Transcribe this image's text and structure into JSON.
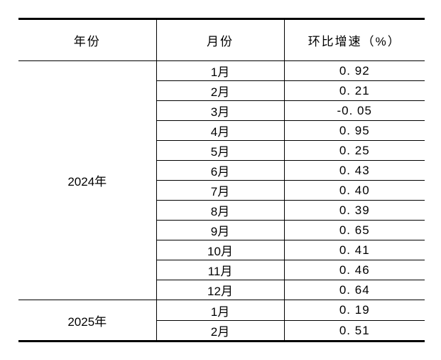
{
  "colors": {
    "background": "#ffffff",
    "border": "#000000",
    "text": "#000000"
  },
  "table": {
    "headers": {
      "year": "年份",
      "month": "月份",
      "rate": "环比增速（%）"
    },
    "groups": [
      {
        "year": "2024年",
        "rows": [
          {
            "month": "1月",
            "rate": "0. 92"
          },
          {
            "month": "2月",
            "rate": "0. 21"
          },
          {
            "month": "3月",
            "rate": "-0. 05"
          },
          {
            "month": "4月",
            "rate": "0. 95"
          },
          {
            "month": "5月",
            "rate": "0. 25"
          },
          {
            "month": "6月",
            "rate": "0. 43"
          },
          {
            "month": "7月",
            "rate": "0. 40"
          },
          {
            "month": "8月",
            "rate": "0. 39"
          },
          {
            "month": "9月",
            "rate": "0. 65"
          },
          {
            "month": "10月",
            "rate": "0. 41"
          },
          {
            "month": "11月",
            "rate": "0. 46"
          },
          {
            "month": "12月",
            "rate": "0. 64"
          }
        ]
      },
      {
        "year": "2025年",
        "rows": [
          {
            "month": "1月",
            "rate": "0. 19"
          },
          {
            "month": "2月",
            "rate": "0. 51"
          }
        ]
      }
    ]
  },
  "chart_data": {
    "type": "table",
    "columns": [
      "年份",
      "月份",
      "环比增速（%）"
    ],
    "rows": [
      [
        "2024年",
        "1月",
        0.92
      ],
      [
        "2024年",
        "2月",
        0.21
      ],
      [
        "2024年",
        "3月",
        -0.05
      ],
      [
        "2024年",
        "4月",
        0.95
      ],
      [
        "2024年",
        "5月",
        0.25
      ],
      [
        "2024年",
        "6月",
        0.43
      ],
      [
        "2024年",
        "7月",
        0.4
      ],
      [
        "2024年",
        "8月",
        0.39
      ],
      [
        "2024年",
        "9月",
        0.65
      ],
      [
        "2024年",
        "10月",
        0.41
      ],
      [
        "2024年",
        "11月",
        0.46
      ],
      [
        "2024年",
        "12月",
        0.64
      ],
      [
        "2025年",
        "1月",
        0.19
      ],
      [
        "2025年",
        "2月",
        0.51
      ]
    ],
    "notes": "Month-over-month growth rate (%) by year and month; merged year cells; thick top/bottom rules, no outer side rules"
  }
}
